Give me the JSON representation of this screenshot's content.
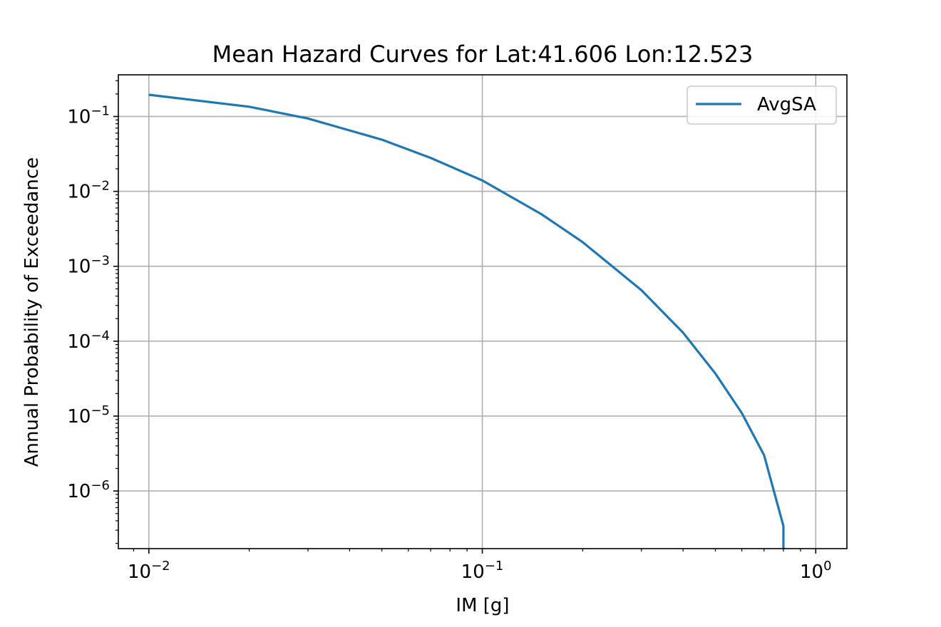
{
  "chart_data": {
    "type": "line",
    "title": "Mean Hazard Curves for Lat:41.606 Lon:12.523",
    "xlabel": "IM [g]",
    "ylabel": "Annual Probability of Exceedance",
    "x_scale": "log",
    "y_scale": "log",
    "xlim": [
      0.0081,
      1.24
    ],
    "ylim": [
      1.7e-07,
      0.36
    ],
    "grid": true,
    "legend_position": "top-right",
    "x_ticks": [
      {
        "value": 0.01,
        "base": "10",
        "exp": "−2"
      },
      {
        "value": 0.1,
        "base": "10",
        "exp": "−1"
      },
      {
        "value": 1,
        "base": "10",
        "exp": "0"
      }
    ],
    "y_ticks": [
      {
        "value": 0.1,
        "base": "10",
        "exp": "−1"
      },
      {
        "value": 0.01,
        "base": "10",
        "exp": "−2"
      },
      {
        "value": 0.001,
        "base": "10",
        "exp": "−3"
      },
      {
        "value": 0.0001,
        "base": "10",
        "exp": "−4"
      },
      {
        "value": 1e-05,
        "base": "10",
        "exp": "−5"
      },
      {
        "value": 1e-06,
        "base": "10",
        "exp": "−6"
      }
    ],
    "series": [
      {
        "name": "AvgSA",
        "color": "#1f77b4",
        "x": [
          0.01,
          0.02,
          0.03,
          0.05,
          0.07,
          0.1,
          0.15,
          0.2,
          0.3,
          0.4,
          0.5,
          0.6,
          0.7,
          0.8,
          0.8
        ],
        "y": [
          0.195,
          0.135,
          0.094,
          0.049,
          0.028,
          0.014,
          0.005,
          0.0021,
          0.00048,
          0.00013,
          3.7e-05,
          1.1e-05,
          3e-06,
          3.4e-07,
          1.7e-07
        ]
      }
    ]
  }
}
